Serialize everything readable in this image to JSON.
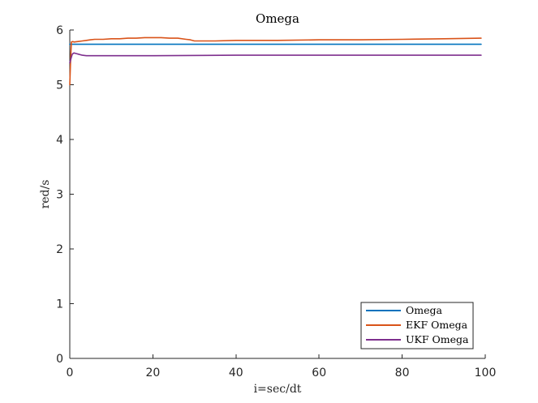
{
  "chart_data": {
    "type": "line",
    "title": "Omega",
    "xlabel": "i=sec/dt",
    "ylabel": "red/s",
    "xlim": [
      0,
      100
    ],
    "ylim": [
      0,
      6
    ],
    "xticks": [
      0,
      20,
      40,
      60,
      80,
      100
    ],
    "yticks": [
      0,
      1,
      2,
      3,
      4,
      5,
      6
    ],
    "grid": false,
    "legend_position": "bottom-right",
    "series": [
      {
        "name": "Omega",
        "color": "#0072BD",
        "x": [
          0,
          99
        ],
        "y": [
          5.74,
          5.74
        ]
      },
      {
        "name": "EKF Omega",
        "color": "#D95319",
        "x": [
          0,
          0.2,
          0.4,
          0.7,
          1,
          2,
          3,
          4,
          5,
          6,
          8,
          10,
          12,
          14,
          16,
          18,
          20,
          22,
          24,
          26,
          28,
          29,
          30,
          35,
          40,
          50,
          60,
          70,
          80,
          90,
          99
        ],
        "y": [
          5.0,
          5.45,
          5.78,
          5.79,
          5.78,
          5.79,
          5.8,
          5.81,
          5.82,
          5.83,
          5.83,
          5.84,
          5.84,
          5.85,
          5.85,
          5.86,
          5.86,
          5.86,
          5.85,
          5.85,
          5.83,
          5.82,
          5.8,
          5.8,
          5.81,
          5.81,
          5.82,
          5.82,
          5.83,
          5.84,
          5.85
        ]
      },
      {
        "name": "UKF Omega",
        "color": "#7E2F8E",
        "x": [
          0,
          0.3,
          0.6,
          1,
          1.5,
          2,
          3,
          4,
          6,
          10,
          20,
          40,
          60,
          80,
          99
        ],
        "y": [
          5.4,
          5.48,
          5.56,
          5.58,
          5.57,
          5.56,
          5.54,
          5.53,
          5.53,
          5.53,
          5.53,
          5.54,
          5.54,
          5.54,
          5.54
        ]
      }
    ]
  }
}
